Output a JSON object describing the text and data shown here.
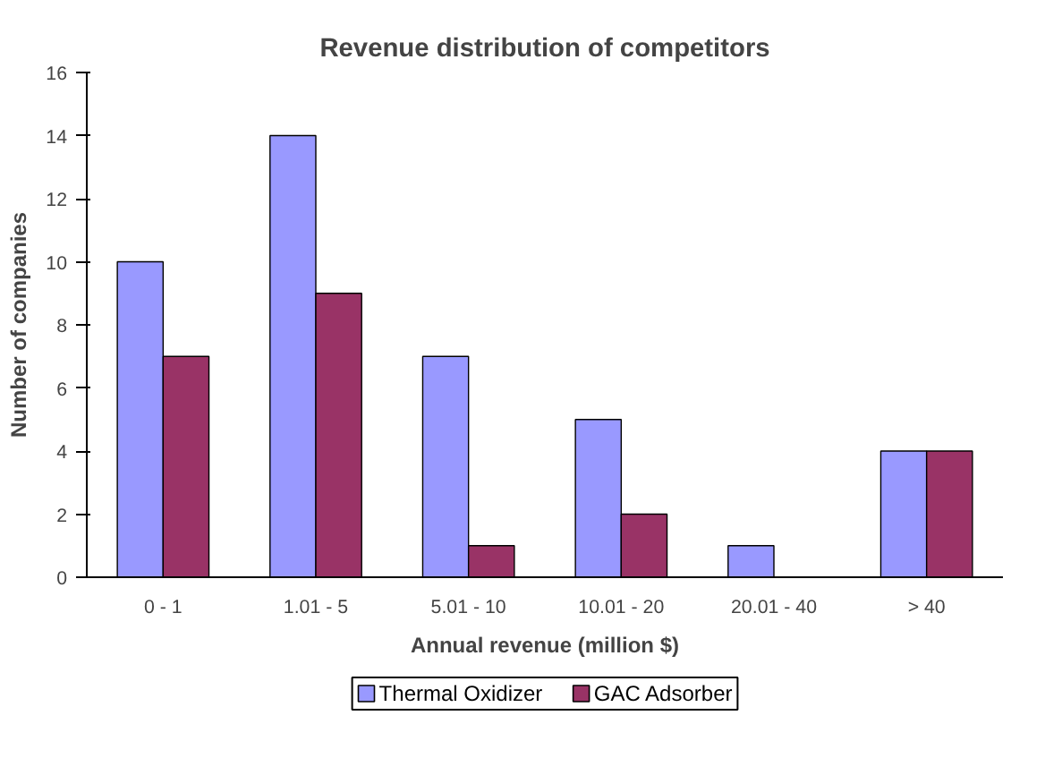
{
  "chart_data": {
    "type": "bar",
    "title": "Revenue distribution of competitors",
    "xlabel": "Annual revenue (million $)",
    "ylabel": "Number of companies",
    "categories": [
      "0 - 1",
      "1.01 - 5",
      "5.01 - 10",
      "10.01 - 20",
      "20.01 - 40",
      "> 40"
    ],
    "series": [
      {
        "name": "Thermal Oxidizer",
        "color": "#9999ff",
        "values": [
          10,
          14,
          7,
          5,
          1,
          4
        ]
      },
      {
        "name": "GAC Adsorber",
        "color": "#993366",
        "values": [
          7,
          9,
          1,
          2,
          0,
          4
        ]
      }
    ],
    "ylim": [
      0,
      16
    ],
    "yticks": [
      0,
      2,
      4,
      6,
      8,
      10,
      12,
      14,
      16
    ],
    "grid": false,
    "legend": "bottom"
  }
}
